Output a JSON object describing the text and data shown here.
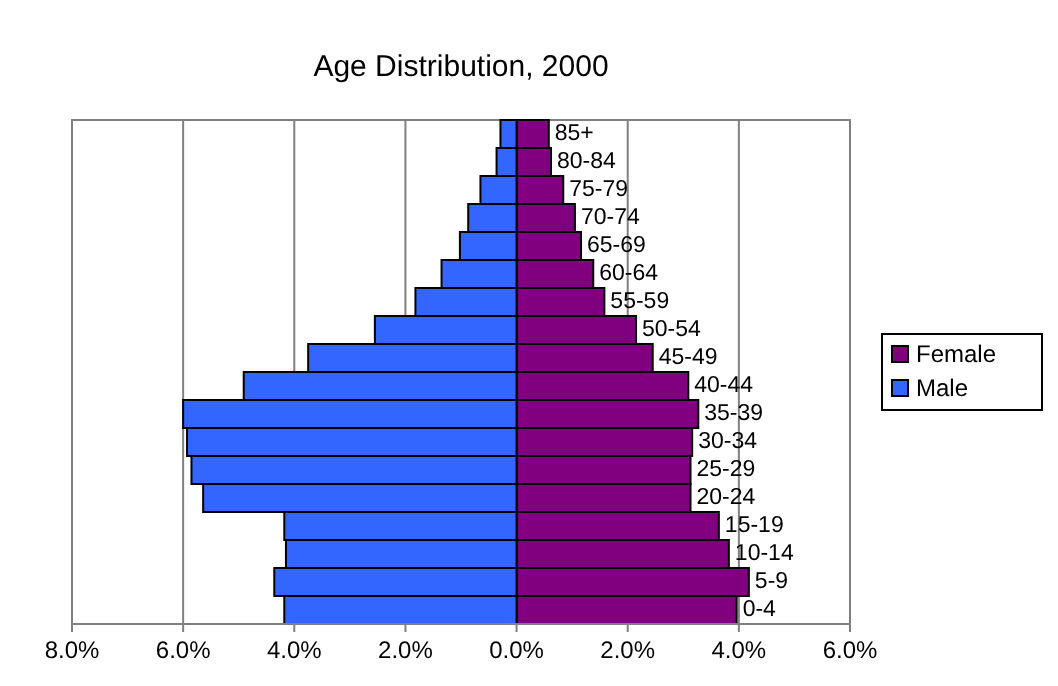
{
  "chart_data": {
    "type": "bar",
    "title": "Age Distribution, 2000",
    "orientation": "horizontal",
    "categories": [
      "85+",
      "80-84",
      "75-79",
      "70-74",
      "65-69",
      "60-64",
      "55-59",
      "50-54",
      "45-49",
      "40-44",
      "35-39",
      "30-34",
      "25-29",
      "20-24",
      "15-19",
      "10-14",
      "5-9",
      "0-4"
    ],
    "series": [
      {
        "name": "Female",
        "color": "#800080",
        "values": [
          0.58,
          0.62,
          0.84,
          1.05,
          1.16,
          1.38,
          1.58,
          2.15,
          2.45,
          3.09,
          3.27,
          3.16,
          3.13,
          3.13,
          3.64,
          3.82,
          4.18,
          3.96
        ]
      },
      {
        "name": "Male",
        "color": "#3366ff",
        "values": [
          -0.29,
          -0.36,
          -0.65,
          -0.87,
          -1.02,
          -1.35,
          -1.82,
          -2.55,
          -3.75,
          -4.91,
          -6.0,
          -5.93,
          -5.85,
          -5.64,
          -4.18,
          -4.15,
          -4.36,
          -4.18
        ]
      }
    ],
    "xlim": [
      -8,
      6
    ],
    "xticks": [
      {
        "value": -8,
        "label": "8.0%"
      },
      {
        "value": -6,
        "label": "6.0%"
      },
      {
        "value": -4,
        "label": "4.0%"
      },
      {
        "value": -2,
        "label": "2.0%"
      },
      {
        "value": 0,
        "label": "0.0%"
      },
      {
        "value": 2,
        "label": "2.0%"
      },
      {
        "value": 4,
        "label": "4.0%"
      },
      {
        "value": 6,
        "label": "6.0%"
      }
    ],
    "stacked": true,
    "grid": "x",
    "legend": "right"
  }
}
